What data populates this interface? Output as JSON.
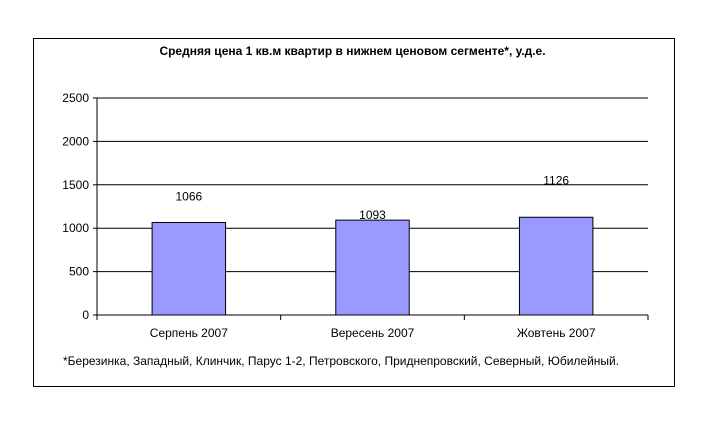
{
  "chart_data": {
    "type": "bar",
    "title": "Средняя цена 1 кв.м квартир в нижнем ценовом сегменте*, у.д.е.",
    "categories": [
      "Серпень 2007",
      "Вересень 2007",
      "Жовтень 2007"
    ],
    "values": [
      1066,
      1093,
      1126
    ],
    "data_labels": [
      "1066",
      "1093",
      "1126"
    ],
    "xlabel": "",
    "ylabel": "",
    "ylim": [
      0,
      2500
    ],
    "yticks": [
      0,
      500,
      1000,
      1500,
      2000,
      2500
    ],
    "ytick_labels": [
      "0",
      "500",
      "1000",
      "1500",
      "2000",
      "2500"
    ],
    "grid": true,
    "legend": "none",
    "footnote": "*Березинка, Западный, Клинчик, Парус 1-2, Петровского, Приднепровский, Северный, Юбилейный.",
    "colors": {
      "bar_fill": "#9999ff",
      "bar_stroke": "#000000",
      "grid": "#000000",
      "plot_bg": "#ffffff"
    }
  }
}
